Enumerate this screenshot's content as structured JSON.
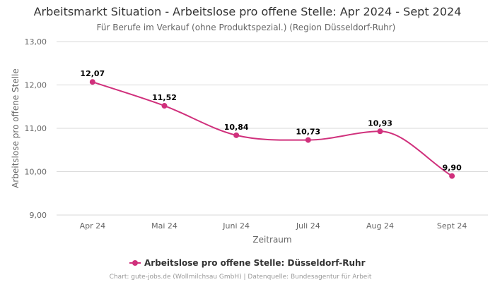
{
  "title": "Arbeitsmarkt Situation - Arbeitslose pro offene Stelle: Apr 2024 - Sept 2024",
  "subtitle": "Für Berufe im Verkauf (ohne Produktspezial.) (Region Düsseldorf-Ruhr)",
  "credits": "Chart: gute-jobs.de (Wollmilchsau GmbH) | Datenquelle: Bundesagentur für Arbeit",
  "colors": {
    "series": "#d0307c",
    "grid": "#d8d8d8"
  },
  "chart_data": {
    "type": "line",
    "title": "Arbeitsmarkt Situation - Arbeitslose pro offene Stelle: Apr 2024 - Sept 2024",
    "subtitle": "Für Berufe im Verkauf (ohne Produktspezial.) (Region Düsseldorf-Ruhr)",
    "xlabel": "Zeitraum",
    "ylabel": "Arbeitslose pro offene Stelle",
    "categories": [
      "Apr 24",
      "Mai 24",
      "Juni 24",
      "Juli 24",
      "Aug 24",
      "Sept 24"
    ],
    "ylim": [
      9,
      13
    ],
    "yticks": [
      9,
      10,
      11,
      12,
      13
    ],
    "ytick_labels": [
      "9,00",
      "10,00",
      "11,00",
      "12,00",
      "13,00"
    ],
    "grid": true,
    "legend_position": "bottom-center",
    "series": [
      {
        "name": "Arbeitslose pro offene Stelle: Düsseldorf-Ruhr",
        "values": [
          12.07,
          11.52,
          10.84,
          10.73,
          10.93,
          9.9
        ],
        "labels": [
          "12,07",
          "11,52",
          "10,84",
          "10,73",
          "10,93",
          "9,90"
        ],
        "color": "#d0307c"
      }
    ]
  }
}
